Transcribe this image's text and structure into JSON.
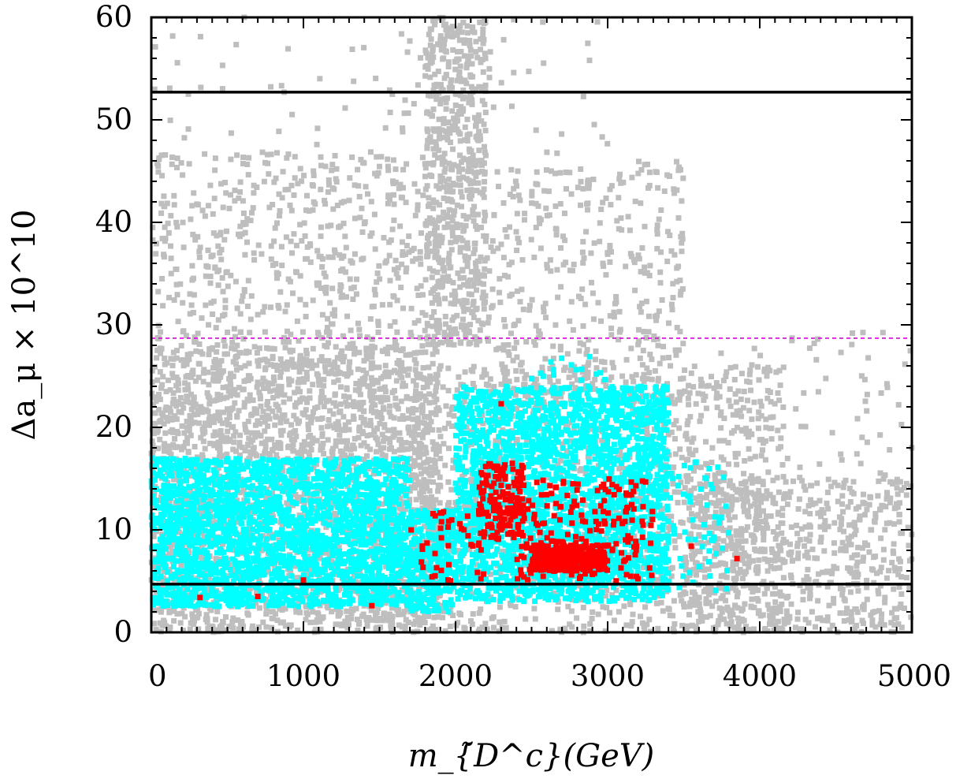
{
  "chart_data": {
    "type": "scatter",
    "title": "",
    "xlabel": "m_{̃D^c}(GeV)",
    "ylabel": "Δa_μ × 10^10",
    "xlim": [
      0,
      5000
    ],
    "ylim": [
      0,
      60
    ],
    "x_ticks": [
      0,
      1000,
      2000,
      3000,
      4000,
      5000
    ],
    "y_ticks": [
      0,
      10,
      20,
      30,
      40,
      50,
      60
    ],
    "grid": false,
    "legend": "none",
    "reference_lines": [
      {
        "y": 52.7,
        "color": "#000000",
        "style": "solid"
      },
      {
        "y": 4.7,
        "color": "#000000",
        "style": "solid"
      },
      {
        "y": 28.7,
        "color": "#dd00dd",
        "style": "dashed"
      }
    ],
    "series": [
      {
        "color": "#bebebe",
        "regions": [
          {
            "x": [
              0,
              1900
            ],
            "y": [
              0,
              28
            ],
            "n": 2600
          },
          {
            "x": [
              0,
              1800
            ],
            "y": [
              28,
              47
            ],
            "n": 520
          },
          {
            "x": [
              1800,
              2200
            ],
            "y": [
              28,
              60
            ],
            "n": 650
          },
          {
            "x": [
              2200,
              3500
            ],
            "y": [
              22,
              46
            ],
            "n": 420
          },
          {
            "x": [
              1700,
              4200
            ],
            "y": [
              0,
              26
            ],
            "n": 1300
          },
          {
            "x": [
              3500,
              5000
            ],
            "y": [
              0,
              15
            ],
            "n": 650
          },
          {
            "x": [
              0,
              3000
            ],
            "y": [
              46,
              60
            ],
            "n": 90
          },
          {
            "x": [
              3200,
              5000
            ],
            "y": [
              15,
              30
            ],
            "n": 80
          }
        ]
      },
      {
        "color": "#00ffff",
        "regions": [
          {
            "x": [
              0,
              1700
            ],
            "y": [
              2.5,
              17
            ],
            "n": 2300
          },
          {
            "x": [
              1700,
              2000
            ],
            "y": [
              2,
              12
            ],
            "n": 300
          },
          {
            "x": [
              2000,
              3400
            ],
            "y": [
              3,
              24
            ],
            "n": 2300
          },
          {
            "x": [
              3400,
              3800
            ],
            "y": [
              4,
              17
            ],
            "n": 60
          },
          {
            "x": [
              2500,
              3000
            ],
            "y": [
              24,
              27
            ],
            "n": 15
          }
        ]
      },
      {
        "color": "#ff0000",
        "regions": [
          {
            "x": [
              2150,
              2450
            ],
            "y": [
              9,
              16.5
            ],
            "n": 160
          },
          {
            "x": [
              2500,
              3000
            ],
            "y": [
              6,
              8.5
            ],
            "n": 340
          },
          {
            "x": [
              2400,
              3300
            ],
            "y": [
              5,
              15
            ],
            "n": 180
          },
          {
            "x": [
              1700,
              2200
            ],
            "y": [
              5,
              12
            ],
            "n": 40
          }
        ],
        "points": [
          [
            320,
            3.4
          ],
          [
            700,
            3.5
          ],
          [
            1000,
            5.1
          ],
          [
            1450,
            2.6
          ],
          [
            3550,
            8.4
          ],
          [
            3850,
            7.2
          ],
          [
            2300,
            22.3
          ]
        ]
      }
    ]
  }
}
